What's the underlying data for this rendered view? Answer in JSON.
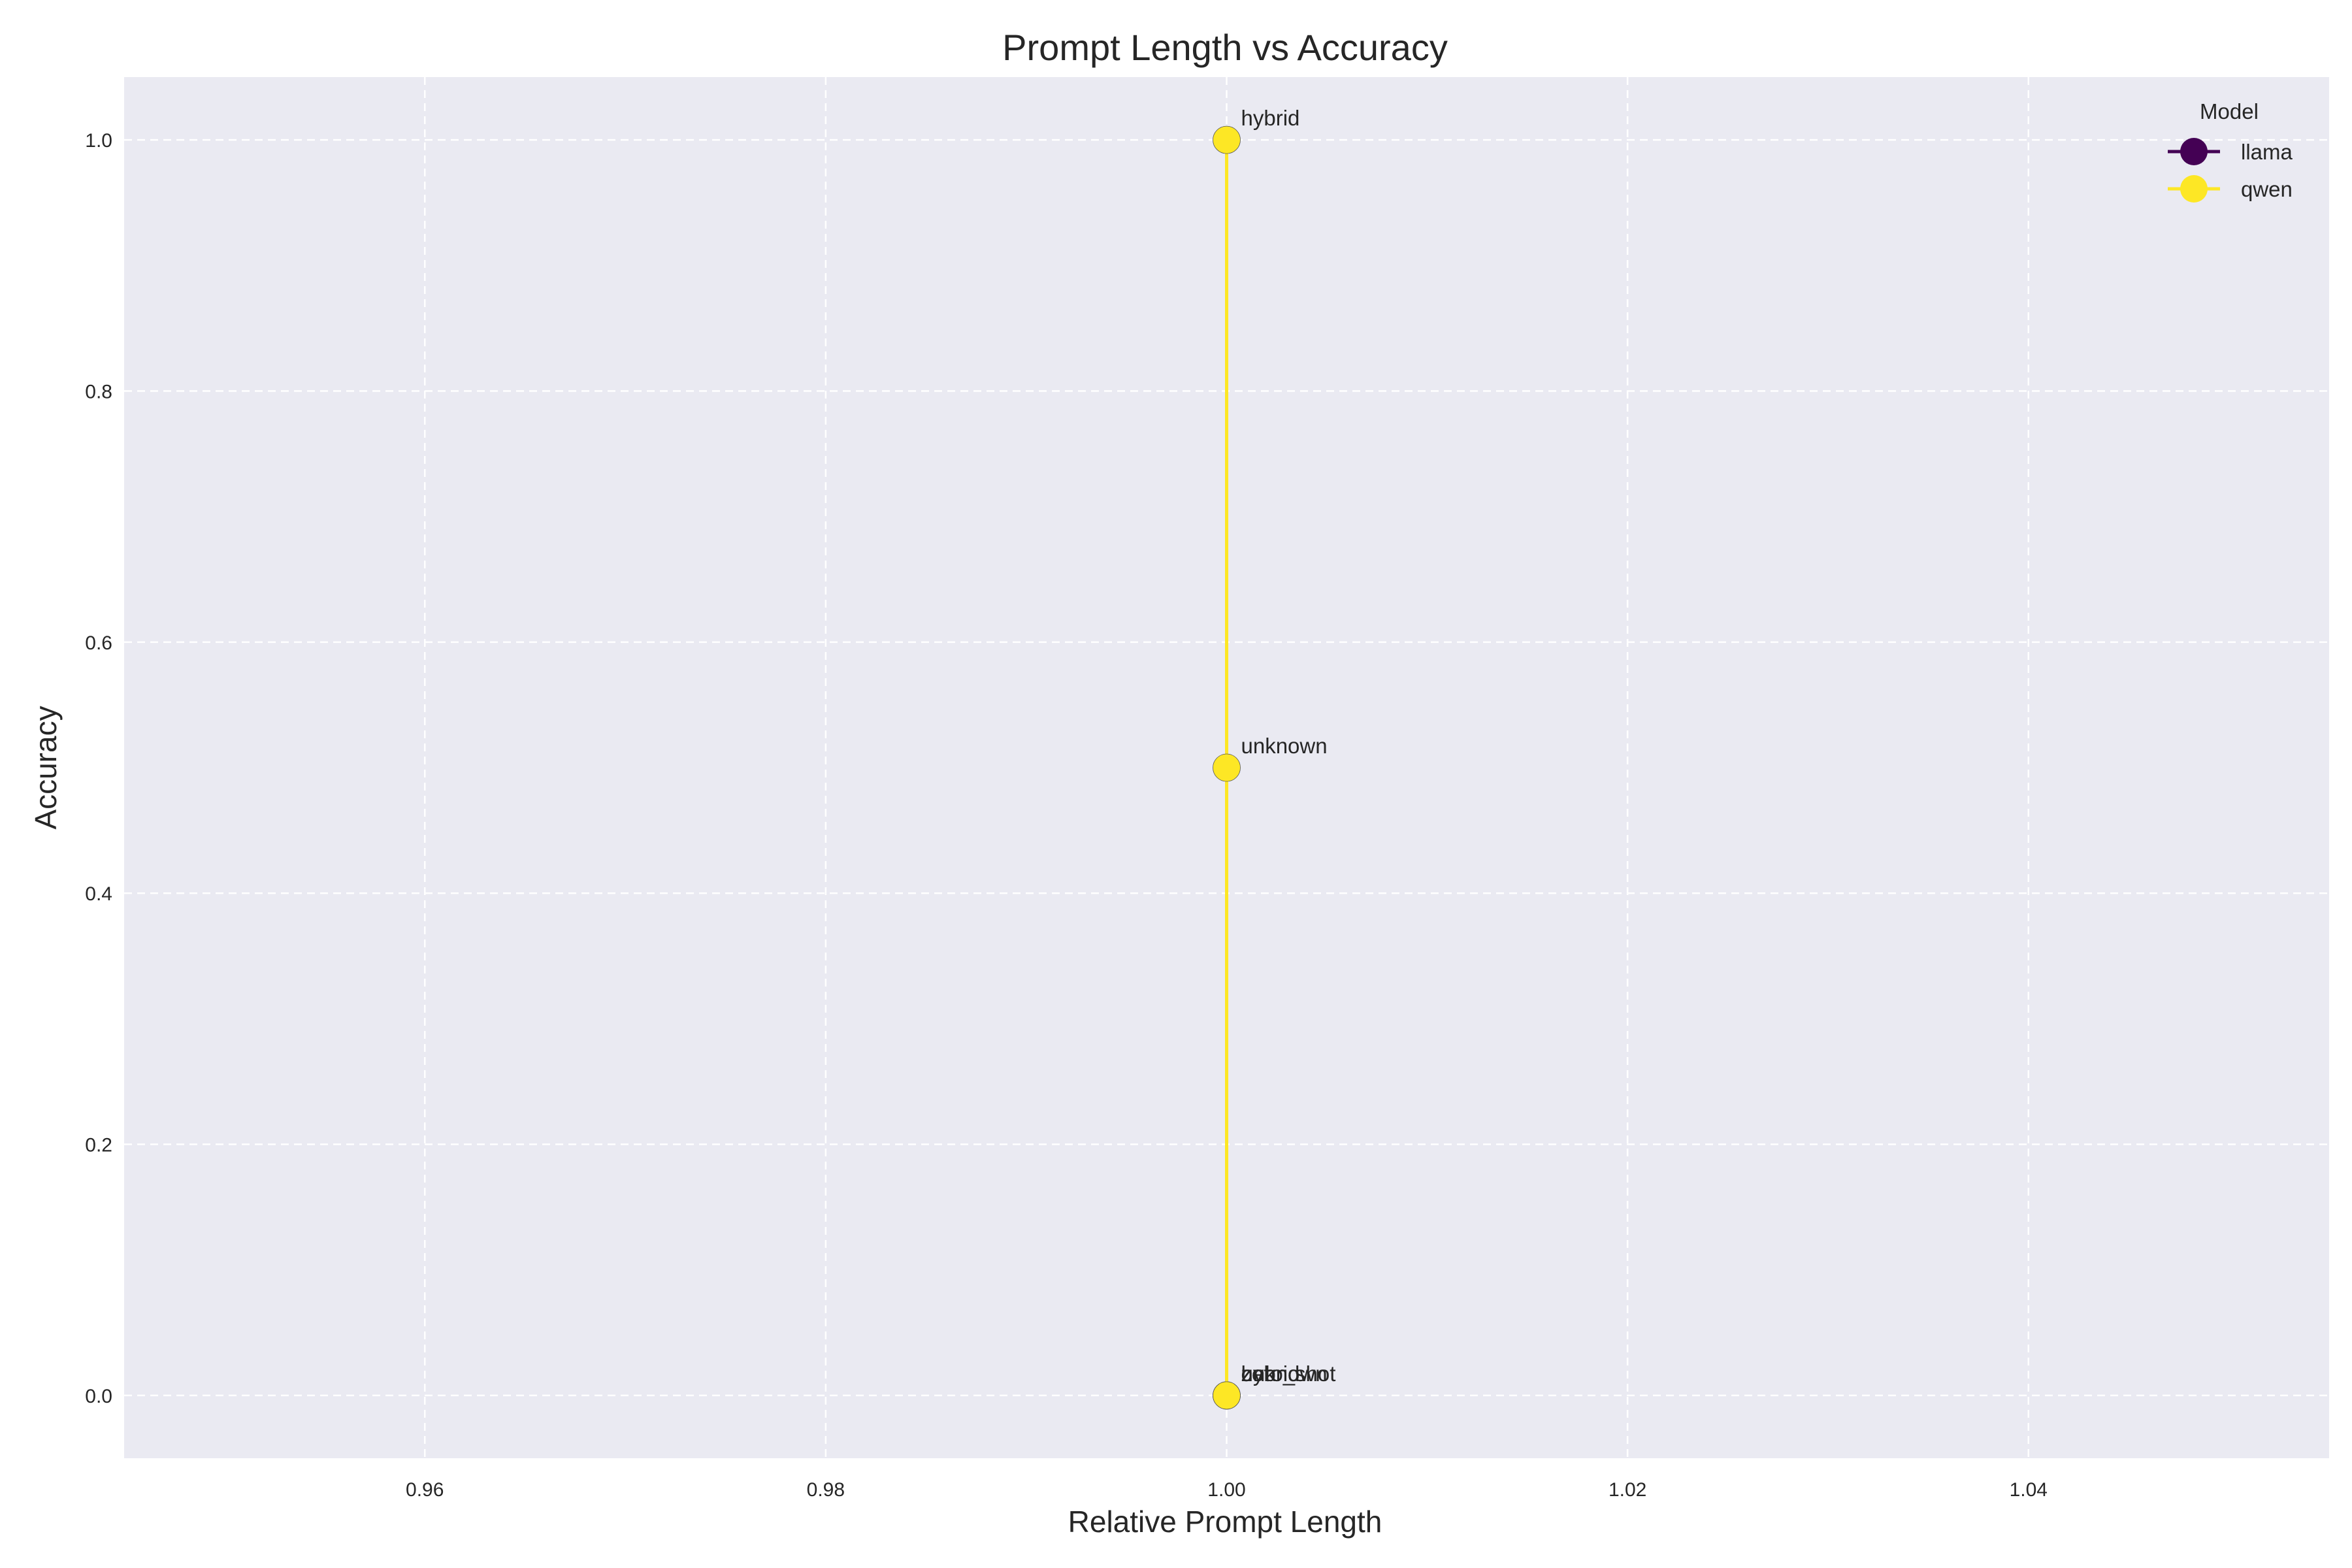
{
  "chart_data": {
    "type": "line",
    "title": "Prompt Length vs Accuracy",
    "xlabel": "Relative Prompt Length",
    "ylabel": "Accuracy",
    "xlim": [
      0.945,
      1.055
    ],
    "ylim": [
      -0.05,
      1.05
    ],
    "x_ticks": [
      0.96,
      0.98,
      1.0,
      1.02,
      1.04
    ],
    "x_tick_labels": [
      "0.96",
      "0.98",
      "1.00",
      "1.02",
      "1.04"
    ],
    "y_ticks": [
      0.0,
      0.2,
      0.4,
      0.6,
      0.8,
      1.0
    ],
    "y_tick_labels": [
      "0.0",
      "0.2",
      "0.4",
      "0.6",
      "0.8",
      "1.0"
    ],
    "grid": true,
    "legend": {
      "title": "Model",
      "placement": "top-right"
    },
    "series": [
      {
        "name": "llama",
        "color": "#440154",
        "points": [
          {
            "x": 1.0,
            "y": 0.0,
            "label": "zero_shot"
          }
        ]
      },
      {
        "name": "qwen",
        "color": "#fde725",
        "points": [
          {
            "x": 1.0,
            "y": 0.0,
            "label": "cot"
          },
          {
            "x": 1.0,
            "y": 0.0,
            "label": "hybrid"
          },
          {
            "x": 1.0,
            "y": 0.0,
            "label": "unknown"
          },
          {
            "x": 1.0,
            "y": 0.5,
            "label": "unknown"
          },
          {
            "x": 1.0,
            "y": 1.0,
            "label": "hybrid"
          }
        ]
      }
    ]
  }
}
